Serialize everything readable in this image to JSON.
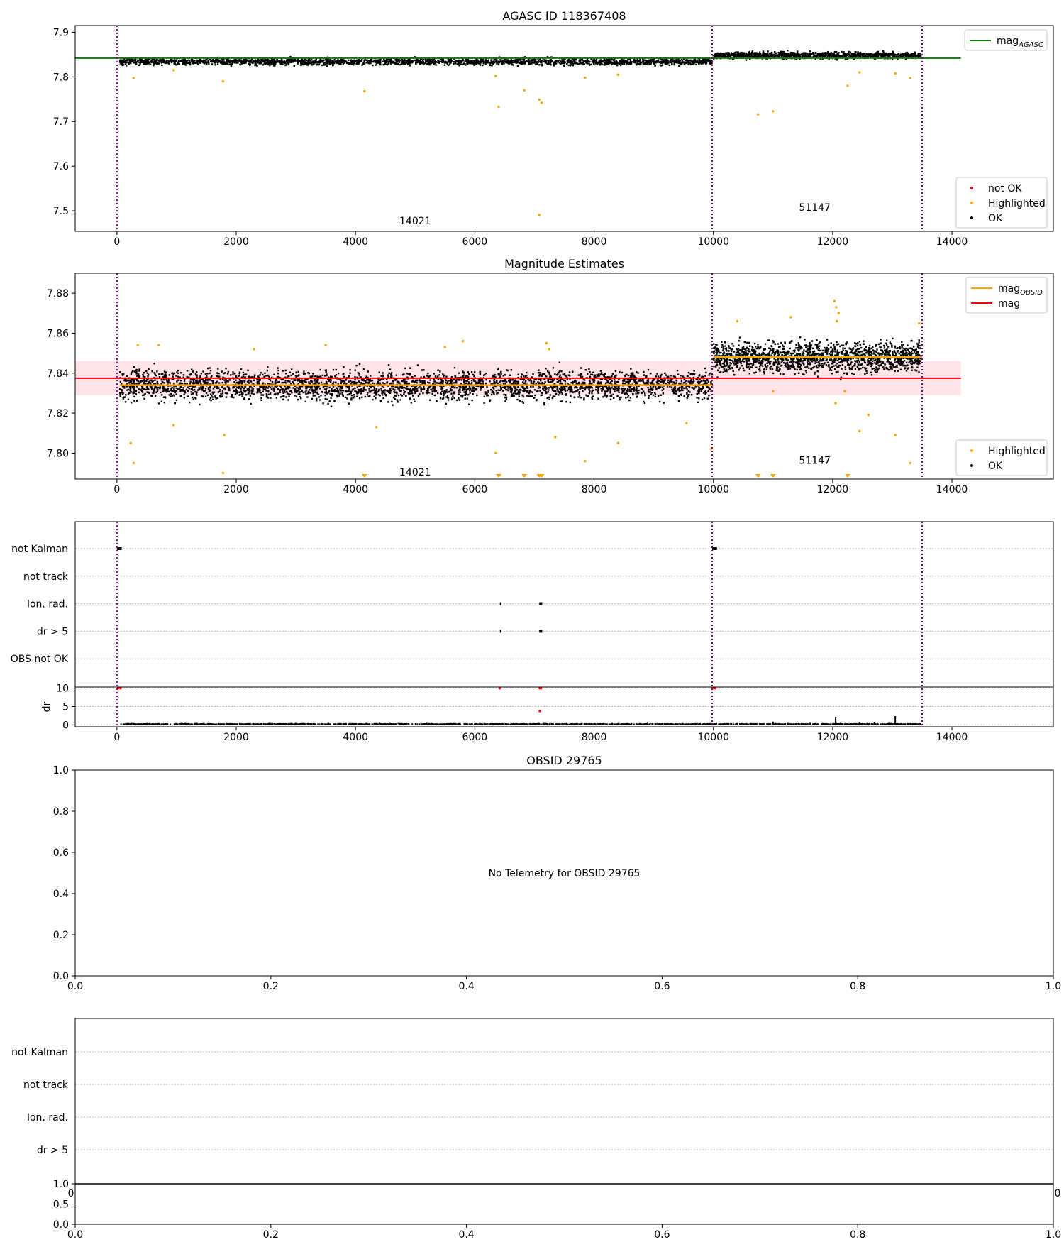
{
  "chart_data": [
    {
      "type": "scatter",
      "title": "AGASC ID 118367408",
      "xlim": [
        -700,
        15700
      ],
      "ylim": [
        7.454,
        7.915
      ],
      "xticks": [
        0,
        2000,
        4000,
        6000,
        8000,
        10000,
        12000,
        14000
      ],
      "yticks": [
        7.5,
        7.6,
        7.7,
        7.8,
        7.9
      ],
      "ytick_labels": [
        "7.5",
        "7.6",
        "7.7",
        "7.8",
        "7.9"
      ],
      "obsid_boundaries": [
        0,
        9980,
        13500
      ],
      "obsids": [
        {
          "label": "14021",
          "x": 5000,
          "y": 7.478
        },
        {
          "label": "51147",
          "x": 11700,
          "y": 7.508
        }
      ],
      "segments": [
        {
          "x_start": 50,
          "x_end": 9980,
          "mean": 7.834,
          "spread": 0.007
        },
        {
          "x_start": 10000,
          "x_end": 13480,
          "mean": 7.848,
          "spread": 0.007
        }
      ],
      "reference_line": {
        "name": "mag_AGASC",
        "value": 7.842,
        "x_range": [
          -700,
          14150
        ],
        "color": "#008000"
      },
      "highlighted_points": [
        [
          280,
          7.797
        ],
        [
          1780,
          7.79
        ],
        [
          4150,
          7.768
        ],
        [
          6400,
          7.733
        ],
        [
          6830,
          7.77
        ],
        [
          7080,
          7.749
        ],
        [
          7120,
          7.742
        ],
        [
          7080,
          7.491
        ],
        [
          10750,
          7.716
        ],
        [
          11000,
          7.723
        ],
        [
          12250,
          7.78
        ],
        [
          12450,
          7.81
        ],
        [
          13300,
          7.797
        ],
        [
          13050,
          7.808
        ],
        [
          950,
          7.815
        ],
        [
          8400,
          7.805
        ],
        [
          7850,
          7.798
        ],
        [
          6350,
          7.802
        ]
      ],
      "legend": [
        {
          "label": "mag",
          "sub": "AGASC",
          "color": "#008000",
          "kind": "line",
          "position": "upper-right"
        },
        {
          "label": "not OK",
          "color": "#ff0000",
          "kind": "dot",
          "position": "lower-right"
        },
        {
          "label": "Highlighted",
          "color": "#ffa500",
          "kind": "dot",
          "position": "lower-right"
        },
        {
          "label": "OK",
          "color": "#000000",
          "kind": "dot",
          "position": "lower-right"
        }
      ]
    },
    {
      "type": "scatter",
      "title": "Magnitude Estimates",
      "xlim": [
        -700,
        15700
      ],
      "ylim": [
        7.787,
        7.89
      ],
      "xticks": [
        0,
        2000,
        4000,
        6000,
        8000,
        10000,
        12000,
        14000
      ],
      "yticks": [
        7.8,
        7.82,
        7.84,
        7.86,
        7.88
      ],
      "ytick_labels": [
        "7.80",
        "7.82",
        "7.84",
        "7.86",
        "7.88"
      ],
      "obsid_boundaries": [
        0,
        9980,
        13500
      ],
      "obsids": [
        {
          "label": "14021",
          "x": 5000,
          "y": 7.7905
        },
        {
          "label": "51147",
          "x": 11700,
          "y": 7.7965
        }
      ],
      "segments": [
        {
          "x_start": 50,
          "x_end": 9980,
          "mean": 7.834,
          "spread": 0.007,
          "obsid_mag": 7.834
        },
        {
          "x_start": 10000,
          "x_end": 13480,
          "mean": 7.848,
          "spread": 0.007,
          "obsid_mag": 7.848
        }
      ],
      "mag_line": {
        "name": "mag",
        "value": 7.8375,
        "band": [
          7.829,
          7.846
        ],
        "x_range": [
          -700,
          14150
        ],
        "color": "#ff0000"
      },
      "highlighted_points": [
        [
          280,
          7.795
        ],
        [
          230,
          7.805
        ],
        [
          1780,
          7.79
        ],
        [
          1800,
          7.809
        ],
        [
          950,
          7.814
        ],
        [
          4350,
          7.813
        ],
        [
          7350,
          7.808
        ],
        [
          8400,
          7.805
        ],
        [
          7850,
          7.796
        ],
        [
          6350,
          7.8
        ],
        [
          9550,
          7.815
        ],
        [
          9960,
          7.802
        ],
        [
          12050,
          7.825
        ],
        [
          12450,
          7.811
        ],
        [
          12600,
          7.819
        ],
        [
          13050,
          7.809
        ],
        [
          13300,
          7.795
        ],
        [
          12200,
          7.831
        ],
        [
          11000,
          7.831
        ],
        [
          10400,
          7.866
        ],
        [
          11300,
          7.868
        ],
        [
          12030,
          7.876
        ],
        [
          12060,
          7.873
        ],
        [
          12100,
          7.87
        ],
        [
          12070,
          7.866
        ],
        [
          13450,
          7.865
        ],
        [
          350,
          7.854
        ],
        [
          700,
          7.854
        ],
        [
          2300,
          7.852
        ],
        [
          3500,
          7.854
        ],
        [
          5500,
          7.853
        ],
        [
          5800,
          7.856
        ],
        [
          7200,
          7.855
        ],
        [
          7250,
          7.852
        ]
      ],
      "clipped_points": [
        4150,
        6400,
        6830,
        7080,
        7120,
        10750,
        11000,
        12250
      ],
      "legend": [
        {
          "label": "mag",
          "sub": "OBSID",
          "color": "#ffa500",
          "kind": "line",
          "position": "upper-right"
        },
        {
          "label": "mag",
          "sub": "",
          "color": "#ff0000",
          "kind": "line",
          "position": "upper-right"
        },
        {
          "label": "Highlighted",
          "color": "#ffa500",
          "kind": "dot",
          "position": "lower-right"
        },
        {
          "label": "OK",
          "color": "#000000",
          "kind": "dot",
          "position": "lower-right"
        }
      ]
    },
    {
      "type": "scatter",
      "title": "",
      "xlim": [
        -700,
        15700
      ],
      "flag_rows": [
        "not Kalman",
        "not track",
        "Ion. rad.",
        "dr > 5",
        "OBS not OK"
      ],
      "flag_marks": [
        {
          "row": "not Kalman",
          "x_start": 0,
          "x_end": 80
        },
        {
          "row": "not Kalman",
          "x_start": 9980,
          "x_end": 10060
        },
        {
          "row": "Ion. rad.",
          "x_start": 6420,
          "x_end": 6430
        },
        {
          "row": "Ion. rad.",
          "x_start": 7080,
          "x_end": 7130
        },
        {
          "row": "dr > 5",
          "x_start": 6420,
          "x_end": 6430
        },
        {
          "row": "dr > 5",
          "x_start": 7080,
          "x_end": 7130
        }
      ],
      "dr_subplot": {
        "ylabel": "dr",
        "ylim": [
          -0.5,
          10.3
        ],
        "yticks": [
          0,
          5,
          10
        ],
        "ytick_labels": [
          "0",
          "5",
          "10"
        ],
        "red_points": [
          [
            20,
            10
          ],
          [
            60,
            10
          ],
          [
            6420,
            10
          ],
          [
            7090,
            10
          ],
          [
            7110,
            10
          ],
          [
            9990,
            10
          ],
          [
            10030,
            10
          ],
          [
            7090,
            3.8
          ]
        ],
        "spikes": [
          [
            11000,
            0.9
          ],
          [
            12050,
            2.2
          ],
          [
            12450,
            0.8
          ],
          [
            12700,
            0.8
          ],
          [
            13050,
            2.4
          ],
          [
            13300,
            0.5
          ]
        ]
      },
      "obsid_boundaries": [
        0,
        9980,
        13500
      ],
      "xticks": [
        0,
        2000,
        4000,
        6000,
        8000,
        10000,
        12000,
        14000
      ]
    },
    {
      "type": "scatter",
      "title": "OBSID 29765",
      "xlim": [
        0.0,
        1.0
      ],
      "ylim": [
        0.0,
        1.0
      ],
      "xticks": [
        0.0,
        0.2,
        0.4,
        0.6,
        0.8,
        1.0
      ],
      "xtick_labels": [
        "0.0",
        "0.2",
        "0.4",
        "0.6",
        "0.8",
        "1.0"
      ],
      "yticks": [
        0.0,
        0.2,
        0.4,
        0.6,
        0.8,
        1.0
      ],
      "ytick_labels": [
        "0.0",
        "0.2",
        "0.4",
        "0.6",
        "0.8",
        "1.0"
      ],
      "message": "No Telemetry for OBSID 29765",
      "message_at": [
        0.5,
        0.5
      ]
    },
    {
      "type": "scatter",
      "title": "",
      "flag_rows": [
        "not Kalman",
        "not track",
        "Ion. rad.",
        "dr > 5"
      ],
      "underlying_axis_labels": [
        "0",
        "0"
      ],
      "small_subplot": {
        "xlim": [
          0.0,
          1.0
        ],
        "ylim": [
          0.0,
          1.0
        ],
        "yticks": [
          0.0,
          0.5,
          1.0
        ],
        "ytick_labels": [
          "0.0",
          "0.5",
          "1.0"
        ],
        "xticks": [
          0.0,
          0.2,
          0.4,
          0.6,
          0.8,
          1.0
        ],
        "xtick_labels": [
          "0.0",
          "0.2",
          "0.4",
          "0.6",
          "0.8",
          "1.0"
        ]
      }
    }
  ]
}
